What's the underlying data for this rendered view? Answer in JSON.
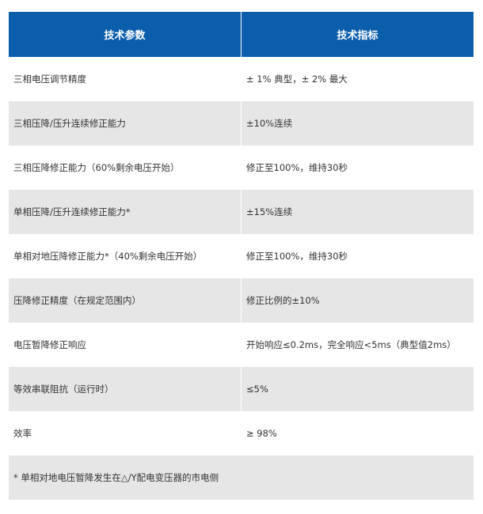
{
  "table": {
    "header": [
      "技术参数",
      "技术指标"
    ],
    "rows": [
      [
        "三相电压调节精度",
        "± 1% 典型，± 2% 最大"
      ],
      [
        "三相压降/压升连续修正能力",
        "±10%连续"
      ],
      [
        "三相压降修正能力（60%剩余电压开始）",
        "修正至100%，维持30秒"
      ],
      [
        "单相压降/压升连续修正能力*",
        "±15%连续"
      ],
      [
        "单相对地压降修正能力*（40%剩余电压开始）",
        "修正至100%，维持30秒"
      ],
      [
        "压降修正精度（在规定范围内）",
        "修正比例的±10%"
      ],
      [
        "电压暂降修正响应",
        "开始响应≤0.2ms，完全响应<5ms（典型值2ms）"
      ],
      [
        "等效串联阻抗（运行时）",
        "≤5%"
      ],
      [
        "效率",
        "≥ 98%"
      ]
    ],
    "footnote": "* 单相对地电压暂降发生在△/Y配电变压器的市电侧"
  }
}
